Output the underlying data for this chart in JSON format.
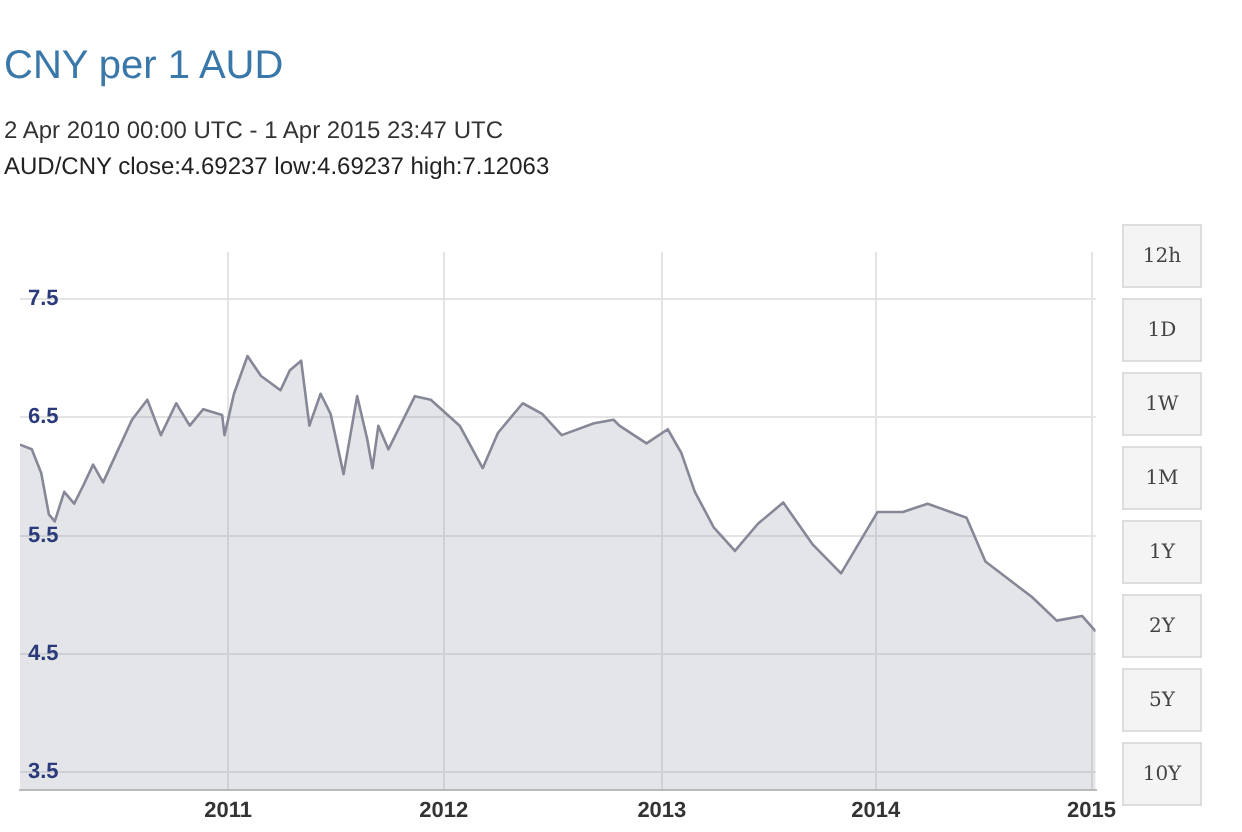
{
  "chart_data": {
    "type": "area",
    "title": "CNY per 1 AUD",
    "subtitle": "2 Apr 2010 00:00 UTC - 1 Apr 2015 23:47 UTC",
    "annotations": [
      "AUD/CNY close:4.69237 low:4.69237 high:7.12063",
      "12h",
      "1D",
      "1W",
      "1M",
      "1Y",
      "2Y",
      "5Y",
      "10Y"
    ],
    "x": [
      "2010-04-02",
      "2010-04-22",
      "2010-05-08",
      "2010-05-21",
      "2010-05-31",
      "2010-06-16",
      "2010-07-03",
      "2010-07-19",
      "2010-08-04",
      "2010-08-21",
      "2010-09-13",
      "2010-10-09",
      "2010-11-04",
      "2010-11-27",
      "2010-12-23",
      "2011-01-15",
      "2011-02-07",
      "2011-03-11",
      "2011-03-15",
      "2011-03-31",
      "2011-04-23",
      "2011-05-16",
      "2011-06-18",
      "2011-07-04",
      "2011-07-23",
      "2011-08-06",
      "2011-08-25",
      "2011-09-11",
      "2011-10-03",
      "2011-10-26",
      "2011-11-12",
      "2011-11-21",
      "2011-12-01",
      "2011-12-18",
      "2012-02-01",
      "2012-02-28",
      "2012-04-17",
      "2012-05-26",
      "2012-06-21",
      "2012-08-02",
      "2012-09-04",
      "2012-10-07",
      "2012-12-01",
      "2013-01-03",
      "2013-01-13",
      "2013-02-28",
      "2013-04-05",
      "2013-04-28",
      "2013-05-21",
      "2013-06-22",
      "2013-07-28",
      "2013-09-05",
      "2013-10-18",
      "2013-12-06",
      "2014-01-24",
      "2014-03-27",
      "2014-05-09",
      "2014-06-20",
      "2014-08-25",
      "2014-09-26",
      "2014-12-14",
      "2015-01-25",
      "2015-03-09",
      "2015-04-01"
    ],
    "series": [
      {
        "color": "#868898",
        "values": [
          6.27,
          6.23,
          6.03,
          5.68,
          5.62,
          5.87,
          5.77,
          5.93,
          6.1,
          5.95,
          6.2,
          6.48,
          6.65,
          6.35,
          6.62,
          6.43,
          6.57,
          6.52,
          6.35,
          6.7,
          7.02,
          6.85,
          6.73,
          6.9,
          6.98,
          6.43,
          6.7,
          6.53,
          6.02,
          6.68,
          6.32,
          6.07,
          6.43,
          6.23,
          6.68,
          6.65,
          6.43,
          6.07,
          6.37,
          6.62,
          6.53,
          6.35,
          6.45,
          6.48,
          6.43,
          6.28,
          6.4,
          6.2,
          5.87,
          5.57,
          5.37,
          5.6,
          5.78,
          5.43,
          5.18,
          5.7,
          5.7,
          5.77,
          5.65,
          5.28,
          4.98,
          4.78,
          4.82,
          4.69
        ]
      }
    ],
    "xlim": [
      "2010-04-02",
      "2015-04-01"
    ],
    "xticks": [
      {
        "value": "2011-03-21",
        "label": "2011"
      },
      {
        "value": "2012-03-21",
        "label": "2012"
      },
      {
        "value": "2013-03-26",
        "label": "2013"
      },
      {
        "value": "2014-03-24",
        "label": "2014"
      },
      {
        "value": "2015-03-25",
        "label": "2015"
      }
    ],
    "ylim": [
      3.35,
      7.9
    ],
    "yticks": [
      3.5,
      4.5,
      5.5,
      6.5,
      7.5
    ],
    "grid": true,
    "legend": false
  }
}
